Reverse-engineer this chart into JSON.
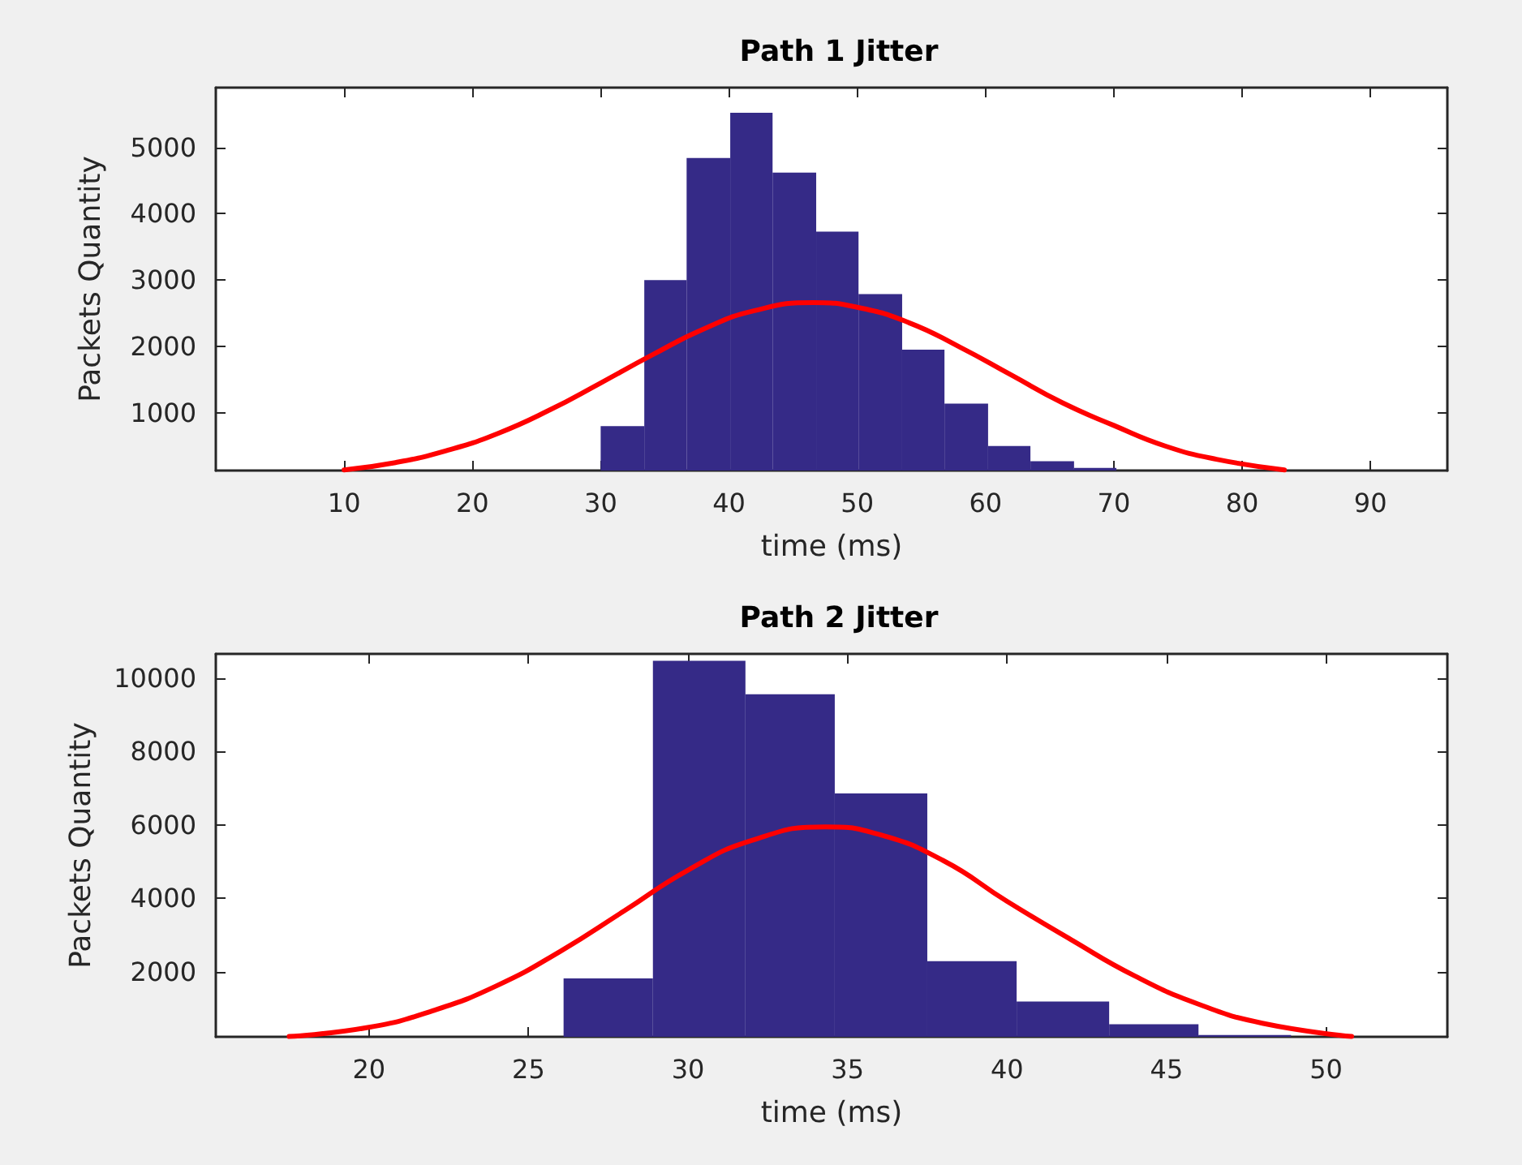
{
  "chart_data": [
    {
      "type": "histogram",
      "title": "Path 1 Jitter",
      "xlabel": "time (ms)",
      "ylabel": "Packets Quantity",
      "xlim": [
        0,
        96
      ],
      "xticks": [
        10,
        20,
        30,
        40,
        50,
        60,
        70,
        80,
        90
      ],
      "ylim": [
        130,
        5900
      ],
      "yticks": [
        1000,
        2000,
        3000,
        4000,
        5000
      ],
      "series": [
        {
          "color": "#352a87",
          "bins": [
            30,
            33.4,
            36.7,
            40.1,
            43.4,
            46.8,
            50.1,
            53.5,
            56.8,
            60.2,
            63.5,
            66.9,
            70.2
          ],
          "values": [
            800,
            3000,
            4840,
            5520,
            4620,
            3730,
            2790,
            1950,
            1140,
            500,
            270,
            170
          ]
        },
        {
          "type": "line",
          "color": "#ff0000",
          "x": [
            10,
            14,
            18,
            22,
            26,
            30,
            34,
            38,
            42,
            46.6,
            50,
            54,
            58,
            62,
            66,
            70,
            74,
            78,
            83.3
          ],
          "values": [
            140,
            250,
            430,
            690,
            1040,
            1450,
            1870,
            2260,
            2540,
            2660,
            2590,
            2360,
            1990,
            1570,
            1150,
            810,
            500,
            300,
            140
          ]
        }
      ]
    },
    {
      "type": "histogram",
      "title": "Path 2 Jitter",
      "xlabel": "time (ms)",
      "ylabel": "Packets Quantity",
      "xlim": [
        15.2,
        53.8
      ],
      "xticks": [
        20,
        25,
        30,
        35,
        40,
        45,
        50
      ],
      "ylim": [
        230,
        10660
      ],
      "yticks": [
        2000,
        4000,
        6000,
        8000,
        10000
      ],
      "series": [
        {
          "color": "#352a87",
          "bins": [
            26.1,
            28.9,
            31.8,
            34.6,
            37.5,
            40.3,
            43.2,
            46.0,
            48.9
          ],
          "values": [
            1820,
            10470,
            9560,
            6860,
            2290,
            1190,
            570,
            280
          ]
        },
        {
          "type": "line",
          "color": "#ff0000",
          "x": [
            17.5,
            20,
            22,
            24,
            26,
            28,
            30,
            32,
            34.3,
            36,
            38,
            40,
            42,
            44,
            46,
            48,
            50.8
          ],
          "values": [
            240,
            490,
            940,
            1620,
            2560,
            3660,
            4770,
            5580,
            5950,
            5740,
            5030,
            3920,
            2880,
            1890,
            1120,
            600,
            240
          ]
        }
      ]
    }
  ]
}
